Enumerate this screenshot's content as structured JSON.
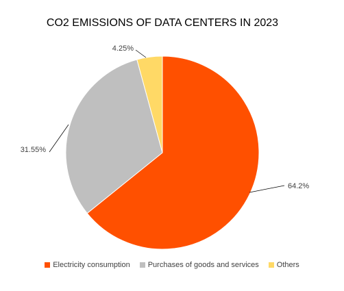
{
  "chart_data": {
    "type": "pie",
    "title": "CO2 EMISSIONS OF DATA CENTERS IN 2023",
    "categories": [
      "Electricity consumption",
      "Purchases of goods and services",
      "Others"
    ],
    "values": [
      64.2,
      31.55,
      4.25
    ],
    "data_labels": [
      "64.2%",
      "31.55%",
      "4.25%"
    ],
    "colors": [
      "#FF5000",
      "#BFBFBF",
      "#FFD966"
    ],
    "legend_position": "bottom",
    "start_angle": "12 o'clock",
    "direction": "clockwise"
  }
}
